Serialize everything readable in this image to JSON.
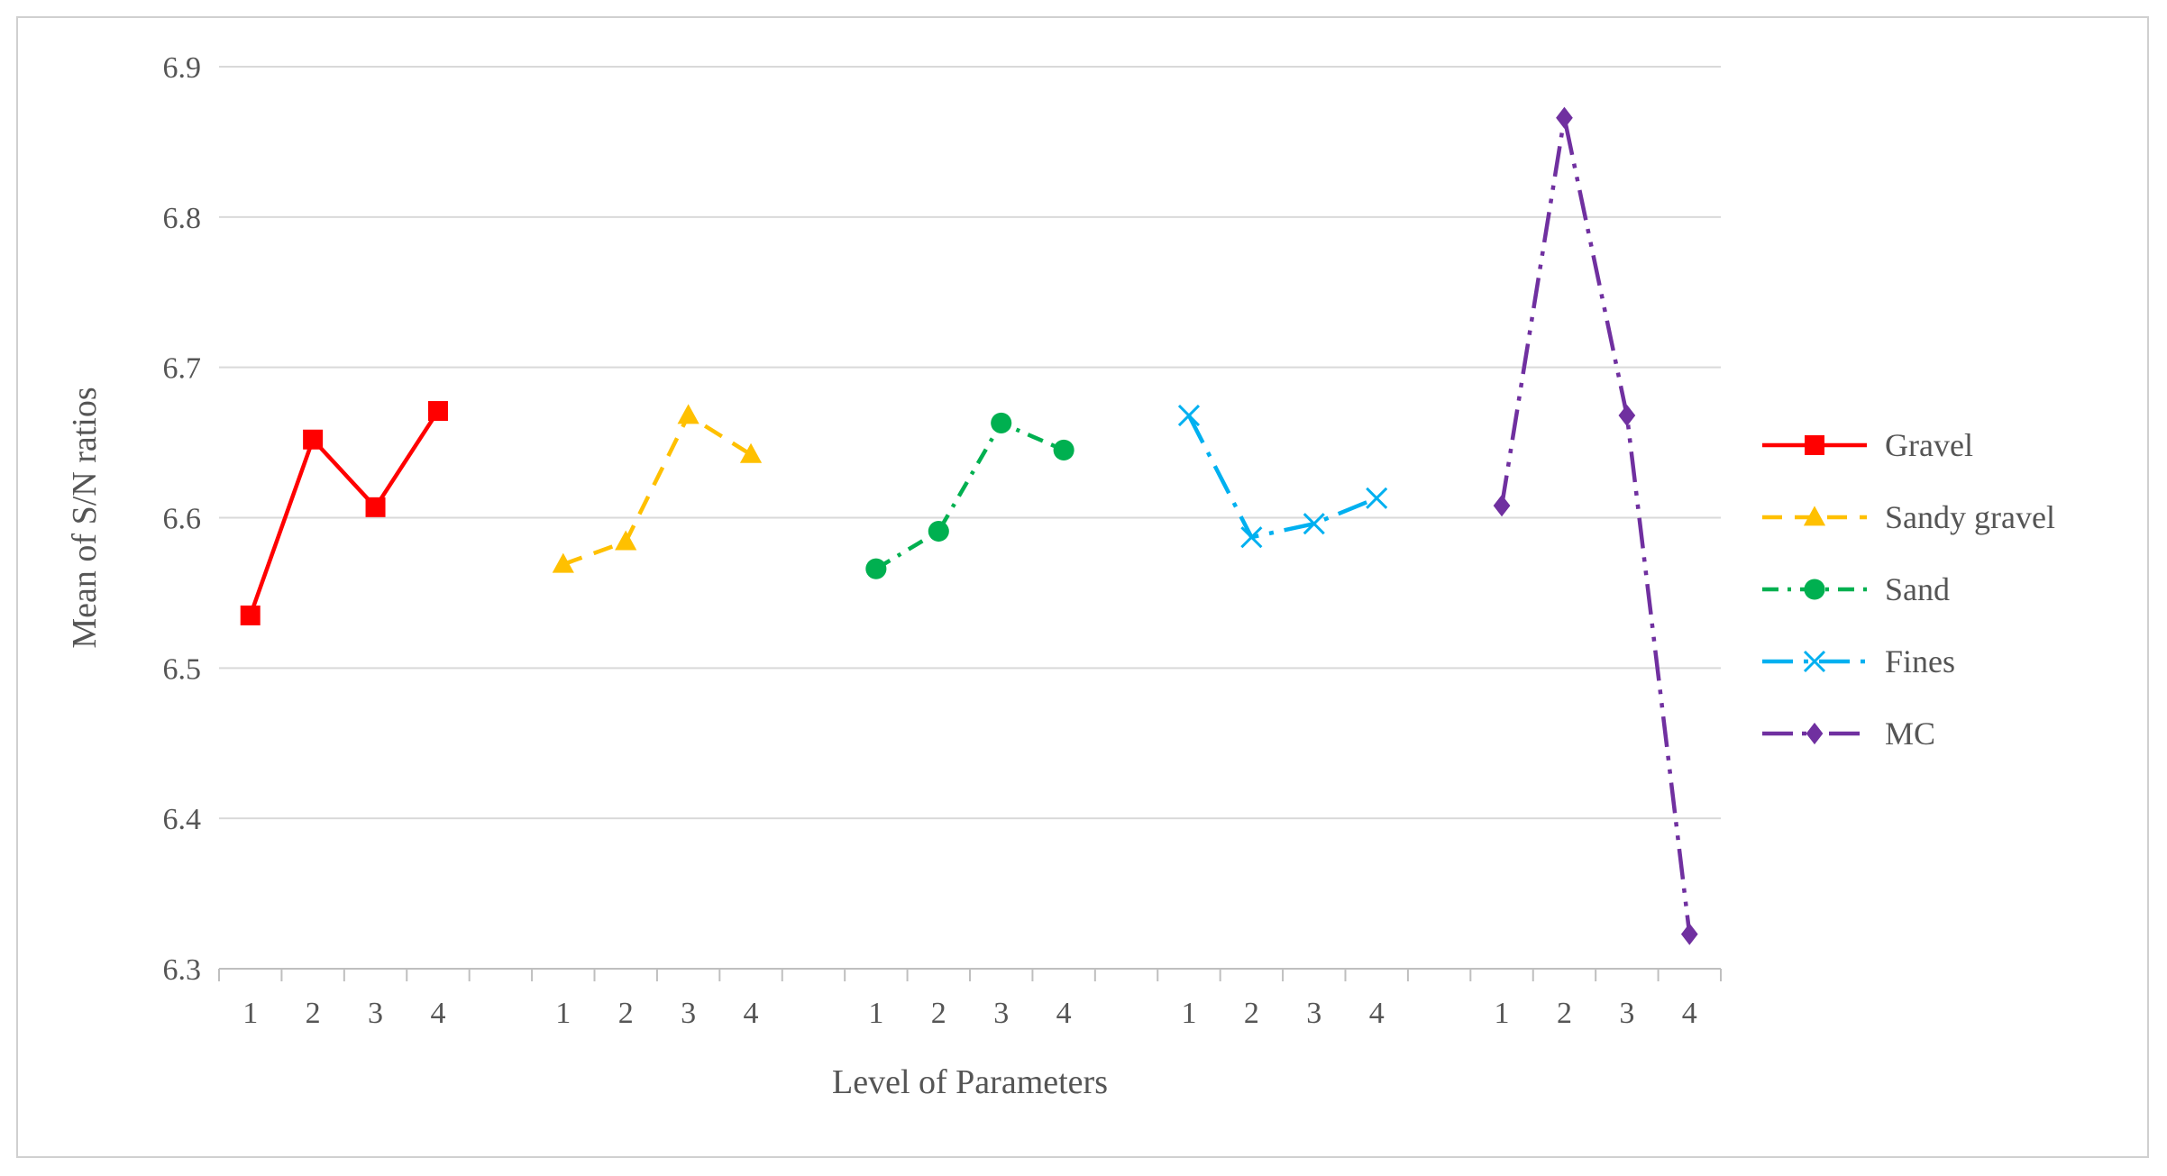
{
  "chart_data": {
    "type": "line",
    "title": "",
    "xlabel": "Level of Parameters",
    "ylabel": "Mean of S/N ratios",
    "ylim": [
      6.3,
      6.9
    ],
    "yticks": [
      "6.3",
      "6.4",
      "6.5",
      "6.6",
      "6.7",
      "6.8",
      "6.9"
    ],
    "grid": "horizontal",
    "legend_position": "right",
    "groups": [
      {
        "levels": [
          "1",
          "2",
          "3",
          "4"
        ]
      },
      {
        "levels": [
          "1",
          "2",
          "3",
          "4"
        ]
      },
      {
        "levels": [
          "1",
          "2",
          "3",
          "4"
        ]
      },
      {
        "levels": [
          "1",
          "2",
          "3",
          "4"
        ]
      },
      {
        "levels": [
          "1",
          "2",
          "3",
          "4"
        ]
      }
    ],
    "series": [
      {
        "name": "Gravel",
        "color": "#ff0000",
        "dash": "solid",
        "marker": "square",
        "values": [
          6.535,
          6.652,
          6.607,
          6.671
        ]
      },
      {
        "name": "Sandy gravel",
        "color": "#ffc000",
        "dash": "dash",
        "marker": "triangle",
        "values": [
          6.569,
          6.584,
          6.668,
          6.642
        ]
      },
      {
        "name": "Sand",
        "color": "#00b050",
        "dash": "dash-dot",
        "marker": "circle",
        "values": [
          6.566,
          6.591,
          6.663,
          6.645
        ]
      },
      {
        "name": "Fines",
        "color": "#00b0f0",
        "dash": "long-dash-dot",
        "marker": "x",
        "values": [
          6.668,
          6.587,
          6.596,
          6.613
        ]
      },
      {
        "name": "MC",
        "color": "#7030a0",
        "dash": "long-dash-dot-dot",
        "marker": "diamond",
        "values": [
          6.608,
          6.866,
          6.668,
          6.323
        ]
      }
    ]
  }
}
